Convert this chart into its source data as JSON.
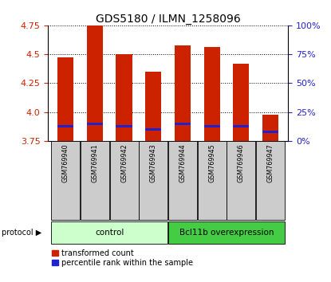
{
  "title": "GDS5180 / ILMN_1258096",
  "samples": [
    "GSM769940",
    "GSM769941",
    "GSM769942",
    "GSM769943",
    "GSM769944",
    "GSM769945",
    "GSM769946",
    "GSM769947"
  ],
  "transformed_counts": [
    4.47,
    4.75,
    4.5,
    4.35,
    4.58,
    4.56,
    4.42,
    3.98
  ],
  "percentile_ranks": [
    13,
    15,
    13,
    10,
    15,
    13,
    13,
    8
  ],
  "ylim": [
    3.75,
    4.75
  ],
  "yticks": [
    3.75,
    4.0,
    4.25,
    4.5,
    4.75
  ],
  "right_yticks": [
    0,
    25,
    50,
    75,
    100
  ],
  "bar_color": "#cc2200",
  "blue_color": "#2222cc",
  "bg_color": "#ffffff",
  "control_group_count": 4,
  "overexpression_group_count": 4,
  "control_label": "control",
  "overexp_label": "Bcl11b overexpression",
  "protocol_label": "protocol",
  "legend_red": "transformed count",
  "legend_blue": "percentile rank within the sample",
  "control_color": "#ccffcc",
  "overexp_color": "#44cc44",
  "bar_width": 0.55,
  "label_box_color": "#cccccc",
  "title_fontsize": 10,
  "tick_fontsize": 8,
  "legend_fontsize": 7
}
